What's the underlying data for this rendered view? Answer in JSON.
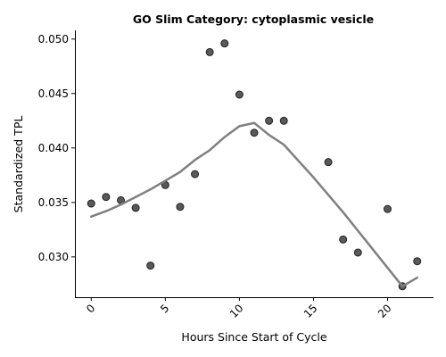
{
  "chart_data": {
    "type": "scatter",
    "title": "GO Slim Category: cytoplasmic vesicle",
    "xlabel": "Hours Since Start of Cycle",
    "ylabel": "Standardized TPL",
    "xlim": [
      -1.1,
      23.1
    ],
    "ylim": [
      0.0263,
      0.0508
    ],
    "x_ticks": [
      0,
      5,
      10,
      15,
      20
    ],
    "y_ticks": [
      0.03,
      0.035,
      0.04,
      0.045,
      0.05
    ],
    "x_tick_labels": [
      "0",
      "5",
      "10",
      "15",
      "20"
    ],
    "y_tick_labels": [
      "0.030",
      "0.035",
      "0.040",
      "0.045",
      "0.050"
    ],
    "grid": false,
    "series": [
      {
        "type": "scatter",
        "color": "#222222",
        "x": [
          0,
          1,
          2,
          3,
          4,
          5,
          6,
          7,
          8,
          9,
          10,
          11,
          12,
          13,
          16,
          17,
          18,
          20,
          21,
          22
        ],
        "y": [
          0.0349,
          0.0355,
          0.0352,
          0.0345,
          0.0292,
          0.0366,
          0.0346,
          0.0376,
          0.0488,
          0.0496,
          0.0449,
          0.0414,
          0.0425,
          0.0425,
          0.0387,
          0.0316,
          0.0304,
          0.0344,
          0.0273,
          0.0296
        ]
      },
      {
        "type": "line",
        "color": "#808080",
        "x": [
          0,
          1,
          2,
          3,
          4,
          5,
          6,
          7,
          8,
          9,
          10,
          11,
          12,
          13,
          14,
          15,
          16,
          17,
          18,
          19,
          20,
          21,
          22
        ],
        "y": [
          0.0337,
          0.0342,
          0.0348,
          0.0355,
          0.0362,
          0.037,
          0.0378,
          0.0389,
          0.0398,
          0.041,
          0.042,
          0.0423,
          0.0412,
          0.0403,
          0.0388,
          0.0373,
          0.0357,
          0.0341,
          0.0324,
          0.0307,
          0.029,
          0.0273,
          0.0281
        ]
      }
    ]
  }
}
